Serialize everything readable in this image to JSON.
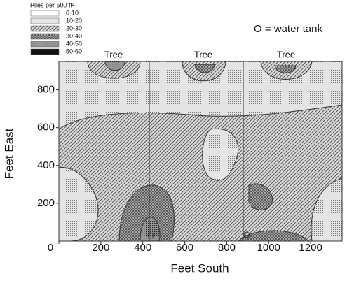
{
  "chart_data": {
    "type": "contour",
    "x_label": "Feet South",
    "y_label": "Feet East",
    "xlim": [
      0,
      1350
    ],
    "ylim": [
      0,
      950
    ],
    "xticks": [
      0,
      200,
      400,
      600,
      800,
      1000,
      1200
    ],
    "yticks": [
      200,
      400,
      600,
      800
    ],
    "legend_title": "Piles per 500 ft²",
    "legend": [
      {
        "label": "0-10",
        "pattern": "p0"
      },
      {
        "label": "10-20",
        "pattern": "p1"
      },
      {
        "label": "20-30",
        "pattern": "p2"
      },
      {
        "label": "30-40",
        "pattern": "p3"
      },
      {
        "label": "40-50",
        "pattern": "p4"
      },
      {
        "label": "50-60",
        "pattern": "p5"
      }
    ],
    "annotations": [
      "O = water tank",
      "Tree",
      "Tree",
      "Tree"
    ]
  }
}
